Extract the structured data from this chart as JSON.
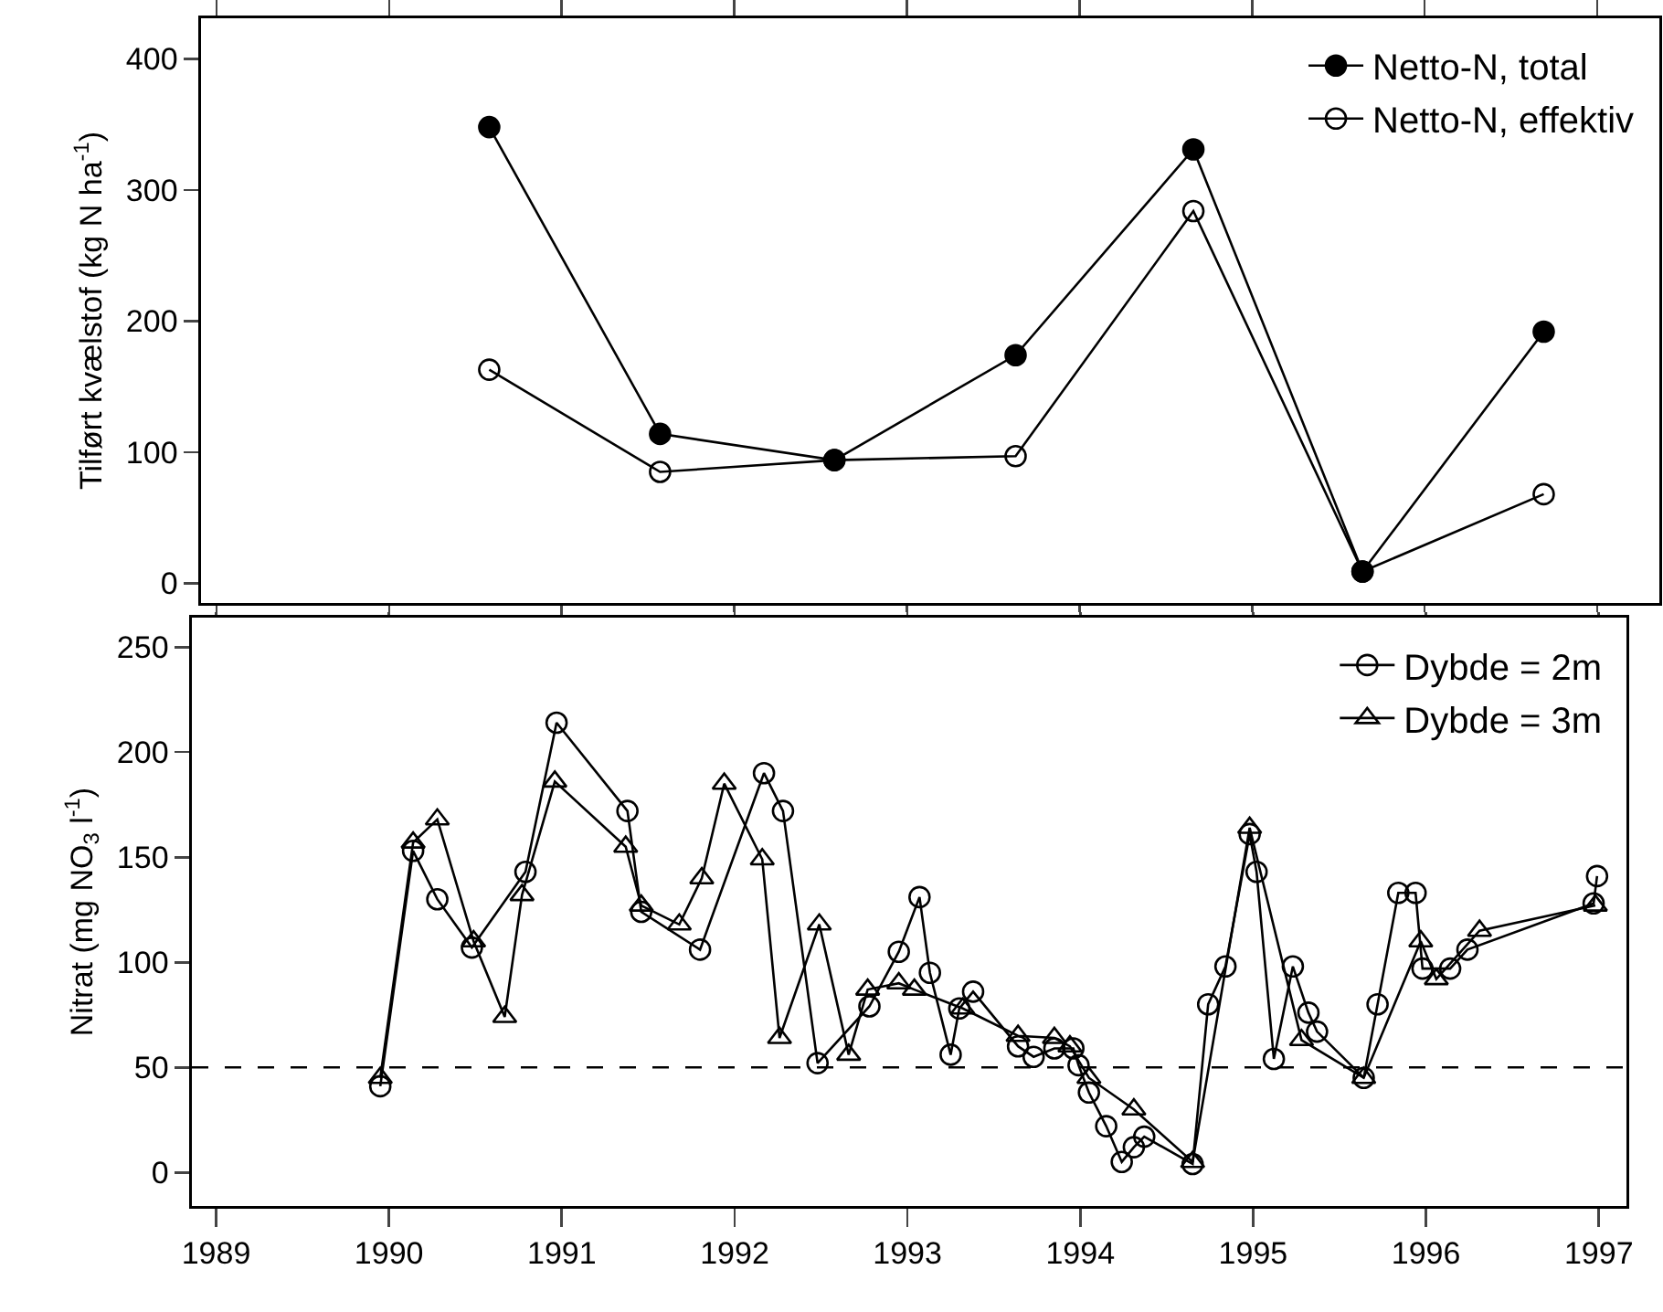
{
  "chart_data": [
    {
      "type": "line",
      "ylabel": "Tilført kvælstof (kg N ha$^{-1}$)",
      "xlim": [
        1988.91,
        1997.36
      ],
      "xticks": [
        1989,
        1990,
        1991,
        1992,
        1993,
        1994,
        1995,
        1996,
        1997
      ],
      "ylim": [
        -15,
        431
      ],
      "yticks": [
        0,
        100,
        200,
        300,
        400
      ],
      "tick_labels": "y",
      "grid": false,
      "legend": "top right",
      "line_style": "solid",
      "series": [
        {
          "name": "Netto-N, total",
          "color": "#000000",
          "marker": "circle",
          "x": [
            1990.58,
            1991.57,
            1992.58,
            1993.63,
            1994.66,
            1995.64,
            1996.69
          ],
          "values": [
            348,
            114,
            94,
            174,
            331,
            9,
            192
          ]
        },
        {
          "name": "Netto-N, effektiv",
          "color": "#000000",
          "marker": "circle-open",
          "x": [
            1990.58,
            1991.57,
            1992.58,
            1993.63,
            1994.66,
            1995.64,
            1996.69
          ],
          "values": [
            163,
            85,
            94,
            97,
            284,
            9,
            68
          ]
        }
      ]
    },
    {
      "type": "line",
      "ylabel": "Nitrat (mg NO$_{3}$ l$^{-1}$)",
      "xlim": [
        1988.86,
        1997.16
      ],
      "xticks": [
        1989,
        1990,
        1991,
        1992,
        1993,
        1994,
        1995,
        1996,
        1997
      ],
      "ylim": [
        -16,
        264
      ],
      "yticks": [
        0,
        50,
        100,
        150,
        200,
        250
      ],
      "grid": false,
      "legend": "top right",
      "line_style": "solid",
      "ref_lines": [
        {
          "axis": "y",
          "value": 50,
          "color": "#000000",
          "line_style": "dashed"
        }
      ],
      "series": [
        {
          "name": "Dybde = 2m",
          "color": "#000000",
          "marker": "circle-open",
          "x": [
            1989.95,
            1990.14,
            1990.28,
            1990.48,
            1990.79,
            1990.97,
            1991.38,
            1991.46,
            1991.8,
            1992.17,
            1992.28,
            1992.48,
            1992.78,
            1992.95,
            1993.07,
            1993.13,
            1993.25,
            1993.3,
            1993.38,
            1993.64,
            1993.73,
            1993.85,
            1993.96,
            1993.99,
            1994.05,
            1994.15,
            1994.24,
            1994.31,
            1994.37,
            1994.65,
            1994.74,
            1994.84,
            1994.98,
            1995.02,
            1995.12,
            1995.23,
            1995.32,
            1995.37,
            1995.64,
            1995.72,
            1995.84,
            1995.94,
            1995.98,
            1996.14,
            1996.24,
            1996.97,
            1996.99
          ],
          "values": [
            41,
            153,
            130,
            107,
            143,
            214,
            172,
            124,
            106,
            190,
            172,
            52,
            79,
            105,
            131,
            95,
            56,
            78,
            86,
            60,
            55,
            59,
            59,
            51,
            38,
            22,
            5,
            12,
            17,
            4,
            80,
            98,
            161,
            143,
            54,
            98,
            76,
            67,
            45,
            80,
            133,
            133,
            97,
            97,
            106,
            128,
            141
          ]
        },
        {
          "name": "Dybde = 3m",
          "color": "#000000",
          "marker": "triangle-up-open",
          "x": [
            1989.95,
            1990.14,
            1990.28,
            1990.49,
            1990.67,
            1990.77,
            1990.96,
            1991.37,
            1991.46,
            1991.68,
            1991.81,
            1991.94,
            1992.16,
            1992.26,
            1992.49,
            1992.66,
            1992.77,
            1992.95,
            1993.04,
            1993.32,
            1993.64,
            1993.85,
            1993.94,
            1994.05,
            1994.31,
            1994.65,
            1994.98,
            1995.28,
            1995.64,
            1995.97,
            1996.06,
            1996.31,
            1996.98
          ],
          "values": [
            45,
            157,
            168,
            110,
            74,
            132,
            186,
            155,
            127,
            118,
            140,
            185,
            149,
            64,
            118,
            56,
            87,
            90,
            87,
            78,
            65,
            64,
            60,
            45,
            30,
            5,
            164,
            63,
            45,
            110,
            92,
            115,
            127
          ]
        }
      ]
    }
  ]
}
